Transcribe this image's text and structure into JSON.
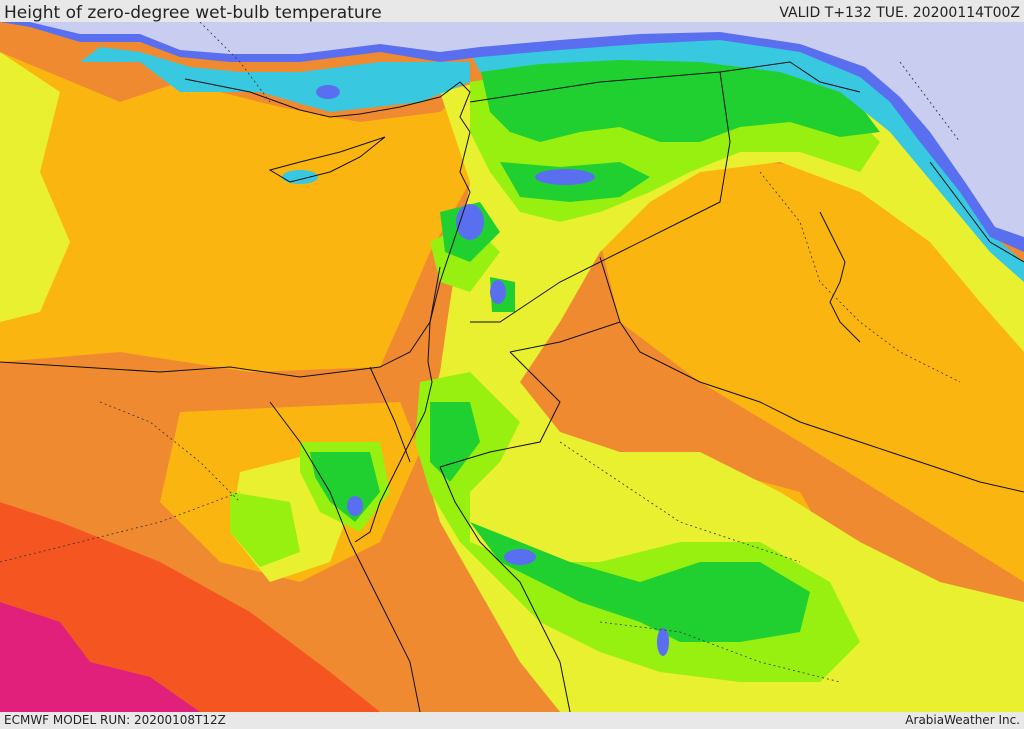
{
  "header": {
    "title": "Height of zero-degree wet-bulb temperature",
    "valid": "VALID T+132 TUE. 20200114T00Z"
  },
  "footer": {
    "model_run": "ECMWF MODEL RUN: 20200108T12Z",
    "credit": "ArabiaWeather Inc."
  },
  "colors": {
    "sea_cold": "#c9cdf0",
    "blue": "#5a6ff0",
    "cyan": "#38c8e0",
    "green": "#20d030",
    "lime": "#98f010",
    "yellow": "#e8f030",
    "amber": "#fbb510",
    "orange": "#f08a30",
    "red_orange": "#f55520",
    "magenta": "#e0207a",
    "border": "#111111"
  }
}
